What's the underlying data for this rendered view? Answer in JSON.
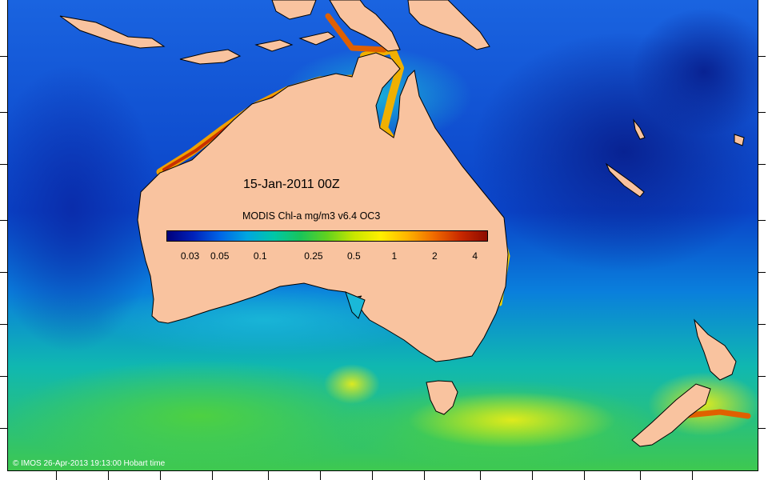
{
  "map": {
    "date_label": "15-Jan-2011 00Z",
    "colorbar": {
      "title": "MODIS Chl-a mg/m3 v6.4 OC3",
      "ticks": [
        "0.03",
        "0.05",
        "0.1",
        "0.25",
        "0.5",
        "1",
        "2",
        "4"
      ],
      "colors": [
        "#00007a",
        "#0022bb",
        "#0066e6",
        "#00a6e0",
        "#00c7a8",
        "#19c45a",
        "#62d21e",
        "#c8e600",
        "#fff000",
        "#ffb400",
        "#f06a00",
        "#c82800",
        "#8c0a00"
      ]
    },
    "credit": "© IMOS 26-Apr-2013 19:13:00 Hobart time",
    "land_color": "#f9c39f",
    "regions": [
      "Australia",
      "Tasmania",
      "New Zealand",
      "New Guinea",
      "Indonesia"
    ]
  }
}
